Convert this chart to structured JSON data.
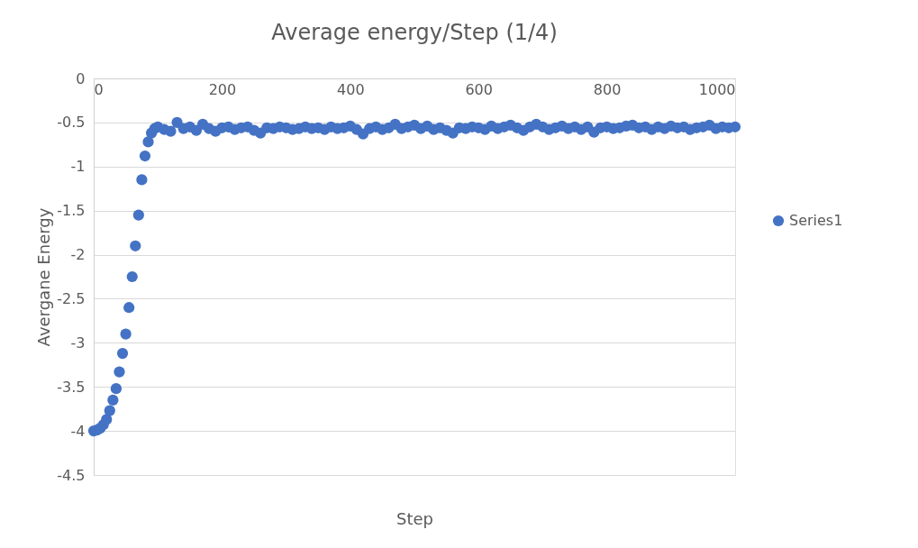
{
  "chart_data": {
    "type": "scatter",
    "title": "Average energy/Step  (1/4)",
    "xlabel": "Step",
    "ylabel": "Avergane Energy",
    "xlim": [
      0,
      1000
    ],
    "xticks": [
      0,
      200,
      400,
      600,
      800,
      1000
    ],
    "ylim": [
      -4.5,
      0
    ],
    "yticks": [
      -4.5,
      -4,
      -3.5,
      -3,
      -2.5,
      -2,
      -1.5,
      -1,
      -0.5,
      0
    ],
    "grid": "y",
    "legend": "right",
    "marker": "circle",
    "x": [
      0,
      5,
      10,
      15,
      20,
      25,
      30,
      35,
      40,
      45,
      50,
      55,
      60,
      65,
      70,
      75,
      80,
      85,
      90,
      95,
      100,
      110,
      120,
      130,
      140,
      150,
      160,
      170,
      180,
      190,
      200,
      210,
      220,
      230,
      240,
      250,
      260,
      270,
      280,
      290,
      300,
      310,
      320,
      330,
      340,
      350,
      360,
      370,
      380,
      390,
      400,
      410,
      420,
      430,
      440,
      450,
      460,
      470,
      480,
      490,
      500,
      510,
      520,
      530,
      540,
      550,
      560,
      570,
      580,
      590,
      600,
      610,
      620,
      630,
      640,
      650,
      660,
      670,
      680,
      690,
      700,
      710,
      720,
      730,
      740,
      750,
      760,
      770,
      780,
      790,
      800,
      810,
      820,
      830,
      840,
      850,
      860,
      870,
      880,
      890,
      900,
      910,
      920,
      930,
      940,
      950,
      960,
      970,
      980,
      990,
      1000
    ],
    "series": [
      {
        "name": "Series1",
        "color": "#4472c4",
        "values": [
          -4.0,
          -3.99,
          -3.97,
          -3.93,
          -3.87,
          -3.77,
          -3.65,
          -3.52,
          -3.33,
          -3.12,
          -2.9,
          -2.6,
          -2.25,
          -1.9,
          -1.55,
          -1.15,
          -0.88,
          -0.72,
          -0.62,
          -0.57,
          -0.55,
          -0.58,
          -0.6,
          -0.5,
          -0.57,
          -0.55,
          -0.59,
          -0.52,
          -0.57,
          -0.6,
          -0.56,
          -0.55,
          -0.58,
          -0.56,
          -0.55,
          -0.59,
          -0.62,
          -0.56,
          -0.57,
          -0.55,
          -0.56,
          -0.58,
          -0.57,
          -0.55,
          -0.57,
          -0.56,
          -0.58,
          -0.55,
          -0.57,
          -0.56,
          -0.54,
          -0.58,
          -0.63,
          -0.57,
          -0.55,
          -0.58,
          -0.56,
          -0.52,
          -0.57,
          -0.55,
          -0.53,
          -0.57,
          -0.54,
          -0.58,
          -0.56,
          -0.59,
          -0.62,
          -0.56,
          -0.57,
          -0.55,
          -0.56,
          -0.58,
          -0.54,
          -0.57,
          -0.55,
          -0.53,
          -0.56,
          -0.59,
          -0.55,
          -0.52,
          -0.55,
          -0.58,
          -0.56,
          -0.54,
          -0.57,
          -0.55,
          -0.58,
          -0.55,
          -0.61,
          -0.56,
          -0.55,
          -0.57,
          -0.56,
          -0.54,
          -0.53,
          -0.56,
          -0.55,
          -0.58,
          -0.55,
          -0.57,
          -0.54,
          -0.56,
          -0.55,
          -0.58,
          -0.56,
          -0.55,
          -0.53,
          -0.57,
          -0.55,
          -0.56,
          -0.55
        ]
      }
    ]
  }
}
